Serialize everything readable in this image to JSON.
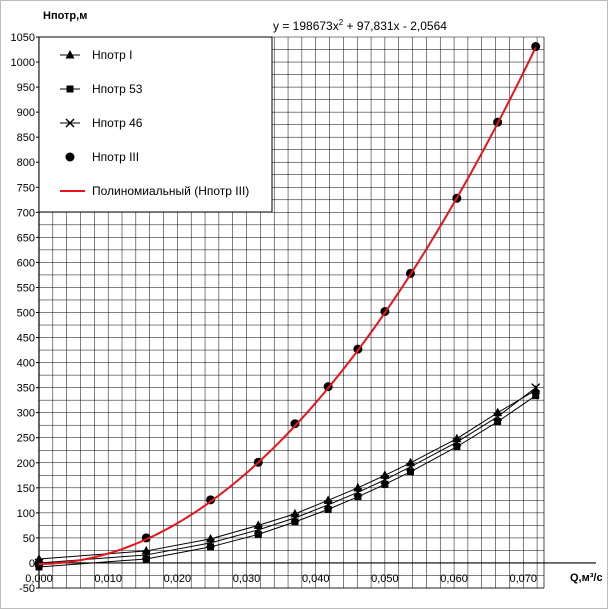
{
  "chart_data": {
    "type": "line",
    "title": "",
    "xlabel": "Q,м³/с",
    "ylabel": "Нпотр,м",
    "equation": {
      "prefix": "y = 198673x",
      "sup": "2",
      "suffix": " + 97,831x - 2,0564"
    },
    "xlim": [
      0,
      0.073
    ],
    "ylim": [
      -50,
      1050
    ],
    "x_ticks": [
      {
        "v": 0,
        "label": "0,000"
      },
      {
        "v": 0.01,
        "label": "0,010"
      },
      {
        "v": 0.02,
        "label": "0,020"
      },
      {
        "v": 0.03,
        "label": "0,030"
      },
      {
        "v": 0.04,
        "label": "0,040"
      },
      {
        "v": 0.05,
        "label": "0,050"
      },
      {
        "v": 0.06,
        "label": "0,060"
      },
      {
        "v": 0.07,
        "label": "0,070"
      }
    ],
    "y_ticks": [
      -50,
      0,
      50,
      100,
      150,
      200,
      250,
      300,
      350,
      400,
      450,
      500,
      550,
      600,
      650,
      700,
      750,
      800,
      850,
      900,
      950,
      1000,
      1050
    ],
    "grid": true,
    "legend_position": "top-left",
    "series": [
      {
        "name": "Нпотр I",
        "marker": "triangle",
        "color": "#000000",
        "points": [
          [
            0,
            8
          ],
          [
            0.0155,
            24
          ],
          [
            0.0248,
            48
          ],
          [
            0.0317,
            75
          ],
          [
            0.037,
            98
          ],
          [
            0.0418,
            125
          ],
          [
            0.0461,
            150
          ],
          [
            0.05,
            175
          ],
          [
            0.0537,
            200
          ],
          [
            0.0604,
            248
          ],
          [
            0.0663,
            300
          ],
          [
            0.0718,
            345
          ]
        ]
      },
      {
        "name": "Нпотр 53",
        "marker": "square",
        "color": "#000000",
        "points": [
          [
            0,
            -8
          ],
          [
            0.0155,
            8
          ],
          [
            0.0248,
            32
          ],
          [
            0.0317,
            57
          ],
          [
            0.037,
            82
          ],
          [
            0.0418,
            107
          ],
          [
            0.0461,
            132
          ],
          [
            0.05,
            157
          ],
          [
            0.0537,
            182
          ],
          [
            0.0604,
            232
          ],
          [
            0.0663,
            282
          ],
          [
            0.0718,
            334
          ]
        ]
      },
      {
        "name": "Нпотр 46",
        "marker": "x",
        "color": "#000000",
        "points": [
          [
            0,
            0
          ],
          [
            0.0155,
            16
          ],
          [
            0.0248,
            40
          ],
          [
            0.0317,
            66
          ],
          [
            0.037,
            90
          ],
          [
            0.0418,
            116
          ],
          [
            0.0461,
            141
          ],
          [
            0.05,
            166
          ],
          [
            0.0537,
            192
          ],
          [
            0.0604,
            241
          ],
          [
            0.0663,
            292
          ],
          [
            0.0718,
            350
          ]
        ]
      },
      {
        "name": "Нпотр III",
        "marker": "circle",
        "color": "#000000",
        "points": [
          [
            0,
            -2
          ],
          [
            0.0155,
            50
          ],
          [
            0.0248,
            126
          ],
          [
            0.0317,
            201
          ],
          [
            0.037,
            278
          ],
          [
            0.0418,
            352
          ],
          [
            0.0461,
            427
          ],
          [
            0.05,
            502
          ],
          [
            0.0537,
            578
          ],
          [
            0.0604,
            728
          ],
          [
            0.0663,
            880
          ],
          [
            0.0718,
            1031
          ]
        ]
      }
    ],
    "trendline": {
      "name": "Полиномиальный (Нпотр III)",
      "color": "#e8141b",
      "coefficients": [
        198673,
        97.831,
        -2.0564
      ],
      "x_range": [
        0,
        0.0718
      ]
    }
  }
}
